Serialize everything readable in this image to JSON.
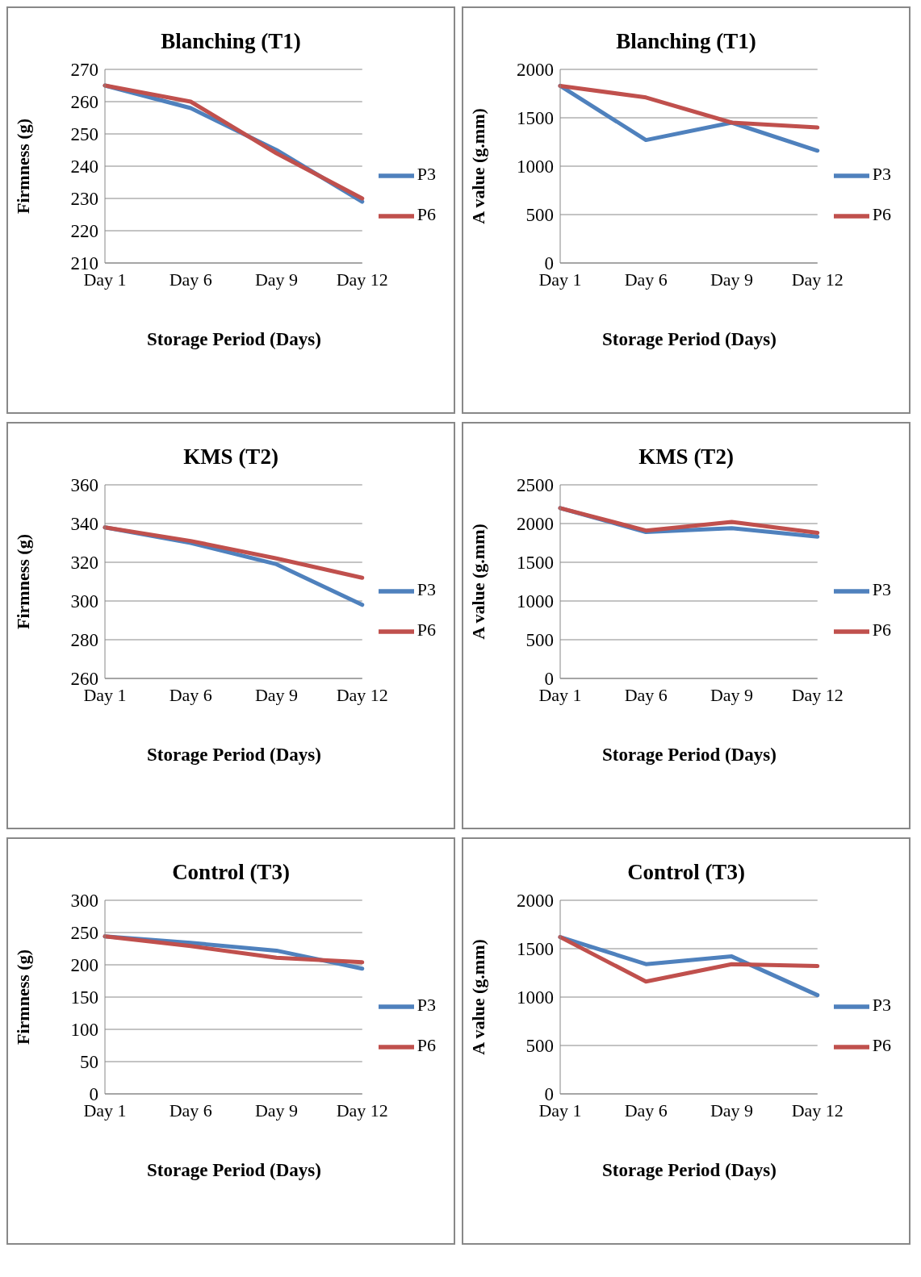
{
  "chart_data": [
    {
      "type": "line",
      "title": "Blanching (T1)",
      "xlabel": "Storage Period (Days)",
      "ylabel": "Firmness (g)",
      "categories": [
        "Day 1",
        "Day 6",
        "Day 9",
        "Day 12"
      ],
      "series": [
        {
          "name": "P3",
          "color": "#4f81bd",
          "values": [
            265,
            258,
            245,
            229
          ]
        },
        {
          "name": "P6",
          "color": "#c0504d",
          "values": [
            265,
            260,
            244,
            230
          ]
        }
      ],
      "ylim": [
        210,
        270
      ],
      "yticks": [
        210,
        220,
        230,
        240,
        250,
        260,
        270
      ],
      "grid": "y",
      "legend": "right",
      "marker": "none"
    },
    {
      "type": "line",
      "title": "Blanching (T1)",
      "xlabel": "Storage Period (Days)",
      "ylabel": "A value (g.mm)",
      "categories": [
        "Day 1",
        "Day 6",
        "Day 9",
        "Day 12"
      ],
      "series": [
        {
          "name": "P3",
          "color": "#4f81bd",
          "values": [
            1830,
            1270,
            1450,
            1160
          ]
        },
        {
          "name": "P6",
          "color": "#c0504d",
          "values": [
            1830,
            1710,
            1450,
            1400
          ]
        }
      ],
      "ylim": [
        0,
        2000
      ],
      "yticks": [
        0,
        500,
        1000,
        1500,
        2000
      ],
      "grid": "y",
      "legend": "right",
      "marker": "none"
    },
    {
      "type": "line",
      "title": "KMS (T2)",
      "xlabel": "Storage Period (Days)",
      "ylabel": "Firmness (g)",
      "categories": [
        "Day 1",
        "Day 6",
        "Day 9",
        "Day 12"
      ],
      "series": [
        {
          "name": "P3",
          "color": "#4f81bd",
          "values": [
            338,
            330,
            319,
            298
          ]
        },
        {
          "name": "P6",
          "color": "#c0504d",
          "values": [
            338,
            331,
            322,
            312
          ]
        }
      ],
      "ylim": [
        260,
        360
      ],
      "yticks": [
        260,
        280,
        300,
        320,
        340,
        360
      ],
      "grid": "y",
      "legend": "right",
      "marker": "none"
    },
    {
      "type": "line",
      "title": "KMS (T2)",
      "xlabel": "Storage Period (Days)",
      "ylabel": "A value (g.mm)",
      "categories": [
        "Day 1",
        "Day 6",
        "Day 9",
        "Day 12"
      ],
      "series": [
        {
          "name": "P3",
          "color": "#4f81bd",
          "values": [
            2200,
            1890,
            1940,
            1830
          ]
        },
        {
          "name": "P6",
          "color": "#c0504d",
          "values": [
            2200,
            1910,
            2020,
            1880
          ]
        }
      ],
      "ylim": [
        0,
        2500
      ],
      "yticks": [
        0,
        500,
        1000,
        1500,
        2000,
        2500
      ],
      "grid": "y",
      "legend": "right",
      "marker": "none"
    },
    {
      "type": "line",
      "title": "Control (T3)",
      "xlabel": "Storage Period (Days)",
      "ylabel": "Firmness (g)",
      "categories": [
        "Day 1",
        "Day 6",
        "Day 9",
        "Day 12"
      ],
      "series": [
        {
          "name": "P3",
          "color": "#4f81bd",
          "values": [
            244,
            234,
            222,
            194
          ]
        },
        {
          "name": "P6",
          "color": "#c0504d",
          "values": [
            244,
            229,
            211,
            204
          ]
        }
      ],
      "ylim": [
        0,
        300
      ],
      "yticks": [
        0,
        50,
        100,
        150,
        200,
        250,
        300
      ],
      "grid": "y",
      "legend": "right",
      "marker": "none"
    },
    {
      "type": "line",
      "title": "Control (T3)",
      "xlabel": "Storage Period (Days)",
      "ylabel": "A value (g.mm)",
      "categories": [
        "Day 1",
        "Day 6",
        "Day 9",
        "Day 12"
      ],
      "series": [
        {
          "name": "P3",
          "color": "#4f81bd",
          "values": [
            1620,
            1340,
            1420,
            1020
          ]
        },
        {
          "name": "P6",
          "color": "#c0504d",
          "values": [
            1620,
            1160,
            1340,
            1320
          ]
        }
      ],
      "ylim": [
        0,
        2000
      ],
      "yticks": [
        0,
        500,
        1000,
        1500,
        2000
      ],
      "grid": "y",
      "legend": "right",
      "marker": "none"
    }
  ]
}
